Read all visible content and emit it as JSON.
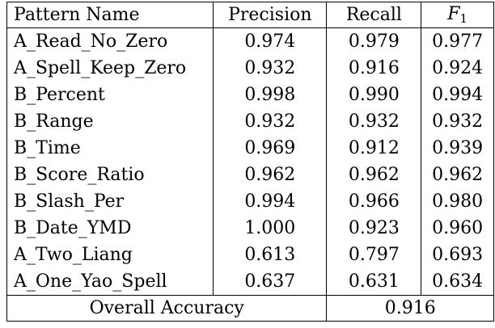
{
  "table": {
    "headers": {
      "pattern_name": "Pattern Name",
      "precision": "Precision",
      "recall": "Recall",
      "f1_letter": "F",
      "f1_subscript": "1"
    },
    "rows": [
      {
        "name": "A_Read_No_Zero",
        "precision": "0.974",
        "recall": "0.979",
        "f1": "0.977"
      },
      {
        "name": "A_Spell_Keep_Zero",
        "precision": "0.932",
        "recall": "0.916",
        "f1": "0.924"
      },
      {
        "name": "B_Percent",
        "precision": "0.998",
        "recall": "0.990",
        "f1": "0.994"
      },
      {
        "name": "B_Range",
        "precision": "0.932",
        "recall": "0.932",
        "f1": "0.932"
      },
      {
        "name": "B_Time",
        "precision": "0.969",
        "recall": "0.912",
        "f1": "0.939"
      },
      {
        "name": "B_Score_Ratio",
        "precision": "0.962",
        "recall": "0.962",
        "f1": "0.962"
      },
      {
        "name": "B_Slash_Per",
        "precision": "0.994",
        "recall": "0.966",
        "f1": "0.980"
      },
      {
        "name": "B_Date_YMD",
        "precision": "1.000",
        "recall": "0.923",
        "f1": "0.960"
      },
      {
        "name": "A_Two_Liang",
        "precision": "0.613",
        "recall": "0.797",
        "f1": "0.693"
      },
      {
        "name": "A_One_Yao_Spell",
        "precision": "0.637",
        "recall": "0.631",
        "f1": "0.634"
      }
    ],
    "footer": {
      "label": "Overall Accuracy",
      "value": "0.916"
    }
  }
}
